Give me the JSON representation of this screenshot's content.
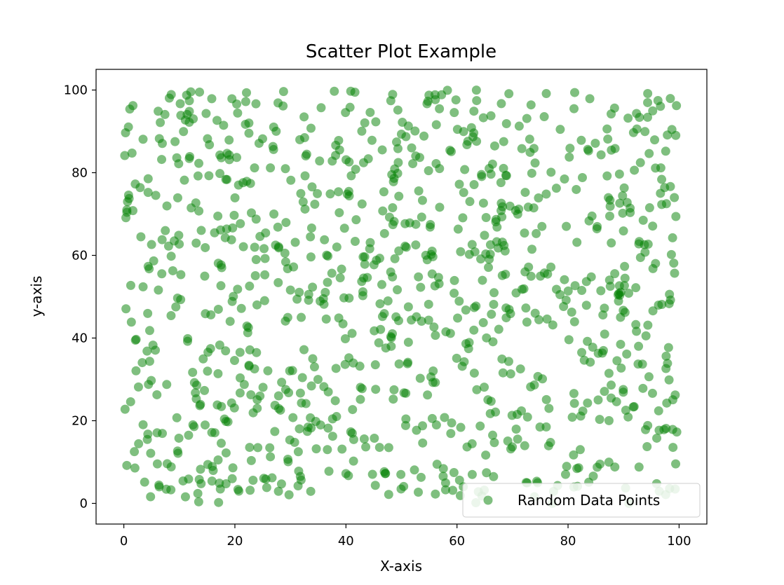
{
  "chart_data": {
    "type": "scatter",
    "title": "Scatter Plot Example",
    "xlabel": "X-axis",
    "ylabel": "y-axis",
    "xlim": [
      -5,
      105
    ],
    "ylim": [
      -5,
      105
    ],
    "x_ticks": [
      0,
      20,
      40,
      60,
      80,
      100
    ],
    "y_ticks": [
      0,
      20,
      40,
      60,
      80,
      100
    ],
    "x_tick_labels": [
      "0",
      "20",
      "40",
      "60",
      "80",
      "100"
    ],
    "y_tick_labels": [
      "0",
      "20",
      "40",
      "60",
      "80",
      "100"
    ],
    "grid": false,
    "legend": {
      "position": "lower-right",
      "entries": [
        "Random Data Points"
      ]
    },
    "series": [
      {
        "name": "Random Data Points",
        "color": "#008000",
        "alpha": 0.5,
        "seed": 42,
        "count": 1000,
        "distribution": "uniform",
        "x_range": [
          0,
          100
        ],
        "y_range": [
          0,
          100
        ]
      }
    ]
  }
}
